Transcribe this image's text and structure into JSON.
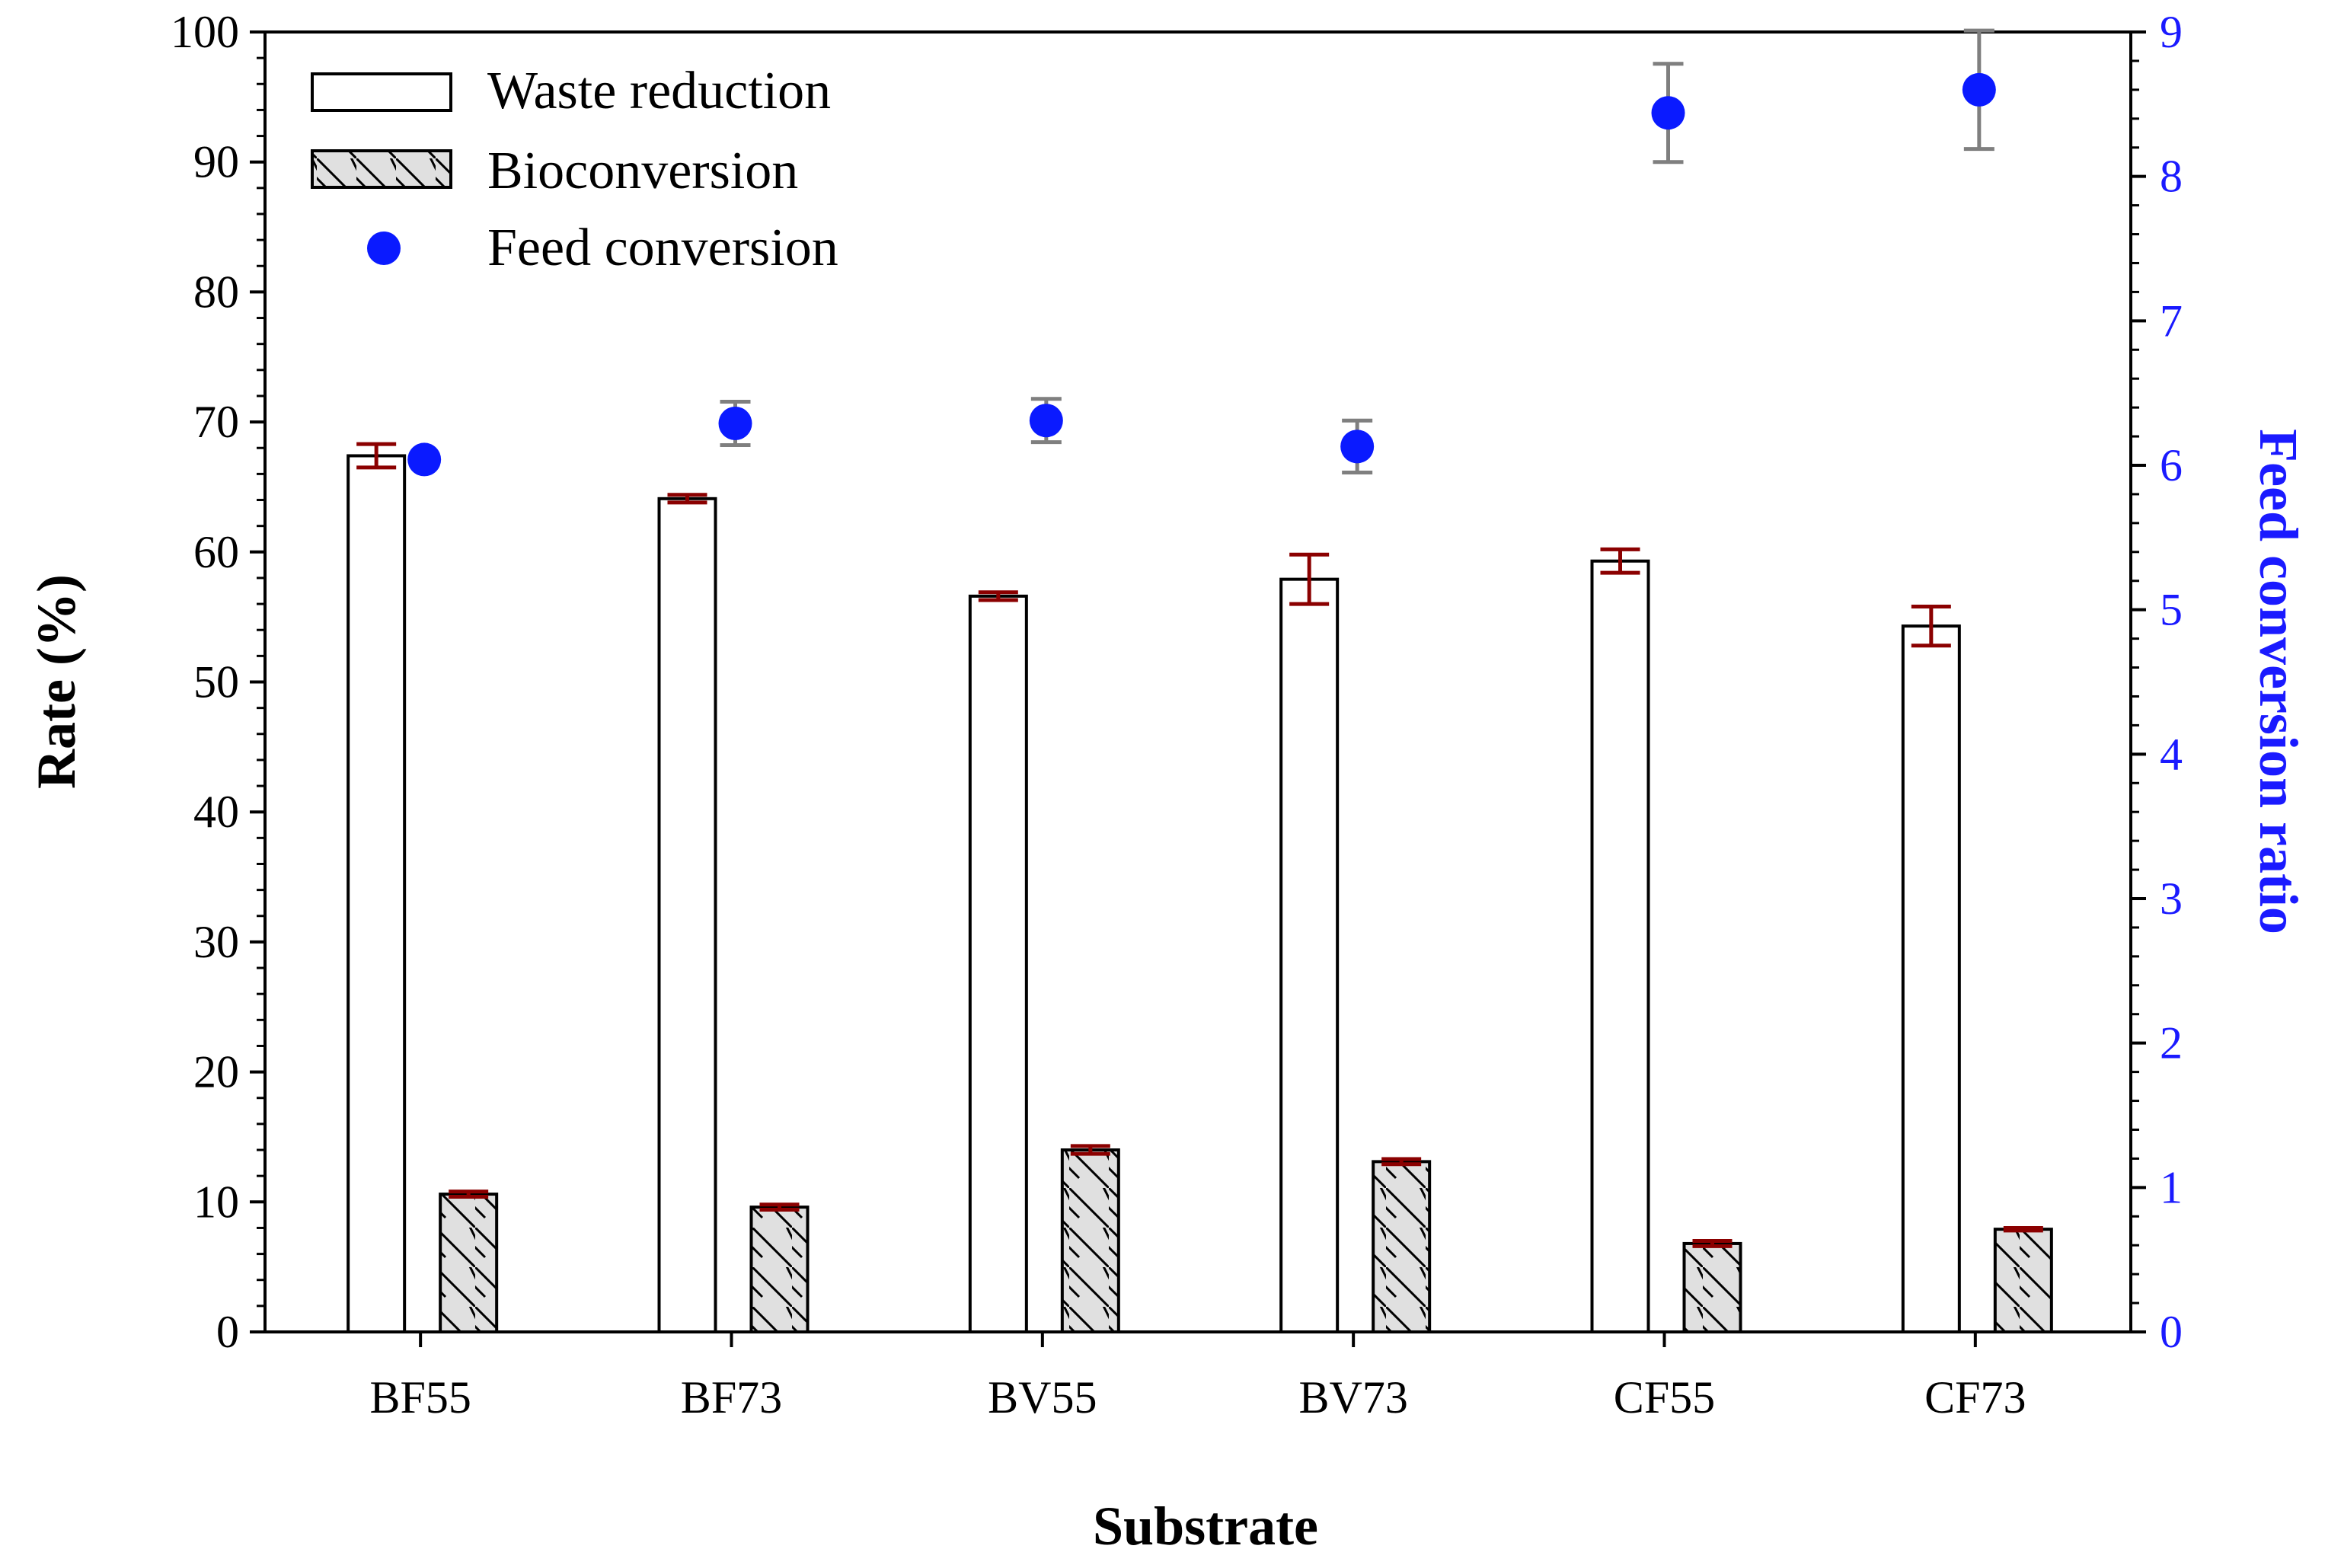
{
  "chart_data": {
    "type": "bar",
    "title": "",
    "xlabel": "Substrate",
    "ylabel": "Rate (%)",
    "y2label": "Feed conversion ratio",
    "ylim": [
      0,
      100
    ],
    "y2lim": [
      0,
      9
    ],
    "yticks": [
      "0",
      "10",
      "20",
      "30",
      "40",
      "50",
      "60",
      "70",
      "80",
      "90",
      "100"
    ],
    "y2ticks": [
      "0",
      "1",
      "2",
      "3",
      "4",
      "5",
      "6",
      "7",
      "8",
      "9"
    ],
    "categories": [
      "BF55",
      "BF73",
      "BV55",
      "BV73",
      "CF55",
      "CF73"
    ],
    "series": [
      {
        "name": "Waste reduction",
        "type": "bar",
        "axis": "left",
        "values": [
          67.4,
          64.1,
          56.6,
          57.9,
          59.3,
          54.3
        ],
        "errors": [
          0.9,
          0.3,
          0.3,
          1.9,
          0.9,
          1.5
        ]
      },
      {
        "name": "Bioconversion",
        "type": "bar",
        "axis": "left",
        "values": [
          10.6,
          9.6,
          14.0,
          13.1,
          6.8,
          7.9
        ],
        "errors": [
          0.2,
          0.2,
          0.3,
          0.2,
          0.2,
          0.1
        ]
      },
      {
        "name": "Feed conversion",
        "type": "scatter",
        "axis": "right",
        "values": [
          6.04,
          6.29,
          6.31,
          6.13,
          8.44,
          8.6
        ],
        "errors": [
          0.0,
          0.15,
          0.15,
          0.18,
          0.34,
          0.41
        ]
      }
    ],
    "legend_position": "top-left",
    "grid": false
  },
  "colors": {
    "axis": "#000000",
    "right_axis": "#1a1aff",
    "error_bar": "#8b0000",
    "scatter": "#0a1aff",
    "scatter_error": "#7f7f7f",
    "hatch_fill": "#e0e0e0"
  }
}
